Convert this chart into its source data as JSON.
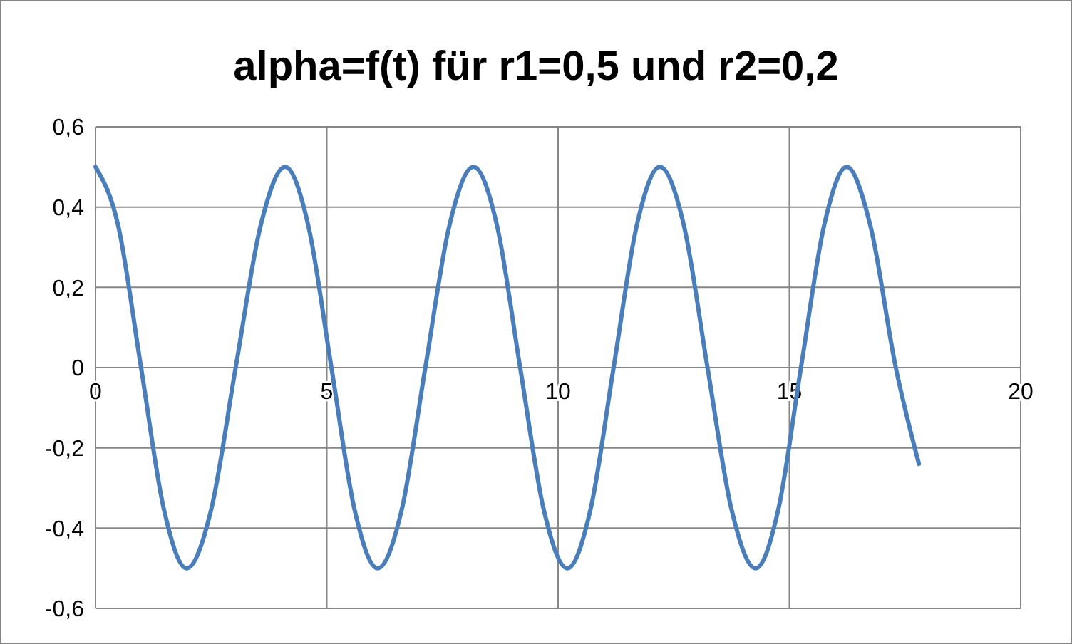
{
  "chart_data": {
    "type": "line",
    "title": "alpha=f(t) für r1=0,5 und r2=0,2",
    "xlim": [
      0,
      20
    ],
    "xticks": [
      0,
      5,
      10,
      15,
      20
    ],
    "ylim": [
      -0.6,
      0.6
    ],
    "yticks": [
      {
        "value": -0.6,
        "label": "-0,6"
      },
      {
        "value": -0.4,
        "label": "-0,4"
      },
      {
        "value": -0.2,
        "label": "-0,2"
      },
      {
        "value": 0,
        "label": "0"
      },
      {
        "value": 0.2,
        "label": "0,2"
      },
      {
        "value": 0.4,
        "label": "0,4"
      },
      {
        "value": 0.6,
        "label": "0,6"
      }
    ],
    "grid": true,
    "marker": "none",
    "line_style": "solid",
    "series": [
      {
        "color": "#4a7ebb",
        "x": [
          0,
          0.49,
          0.985,
          1.48,
          1.97,
          2.5,
          3.03,
          3.57,
          4.1,
          4.6,
          5.1,
          5.6,
          6.1,
          6.62,
          7.13,
          7.65,
          8.17,
          8.68,
          9.18,
          9.69,
          10.2,
          10.7,
          11.2,
          11.7,
          12.2,
          12.72,
          13.23,
          13.75,
          14.27,
          14.76,
          15.25,
          15.75,
          16.24,
          16.75,
          17.3,
          17.8
        ],
        "values": [
          0.5,
          0.354,
          0,
          -0.354,
          -0.5,
          -0.354,
          0,
          0.354,
          0.5,
          0.354,
          0,
          -0.354,
          -0.5,
          -0.354,
          0,
          0.354,
          0.5,
          0.354,
          0,
          -0.354,
          -0.5,
          -0.354,
          0,
          0.354,
          0.5,
          0.354,
          0,
          -0.354,
          -0.5,
          -0.354,
          0,
          0.354,
          0.5,
          0.354,
          0,
          -0.24
        ]
      }
    ]
  }
}
